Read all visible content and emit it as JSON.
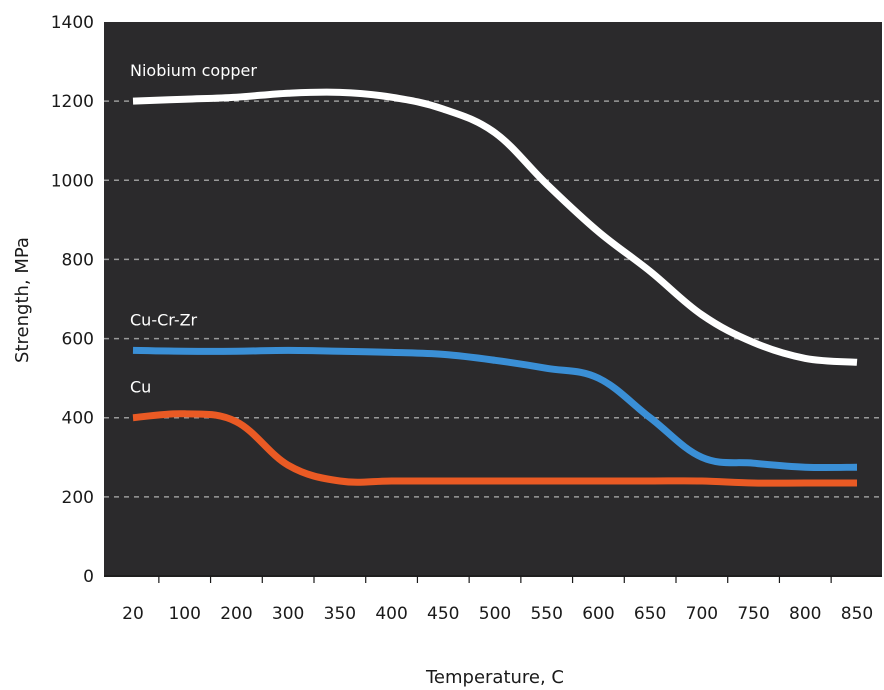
{
  "chart_data": {
    "type": "line",
    "xlabel": "Temperature, C",
    "ylabel": "Strength, MPa",
    "categories": [
      "20",
      "100",
      "200",
      "300",
      "350",
      "400",
      "450",
      "500",
      "550",
      "600",
      "650",
      "700",
      "750",
      "800",
      "850"
    ],
    "yticks": [
      "0",
      "200",
      "400",
      "600",
      "800",
      "1000",
      "1200",
      "1400"
    ],
    "ylim": [
      0,
      1400
    ],
    "grid": "horizontal dashed",
    "background_color": "#2b2a2c",
    "series": [
      {
        "name": "Niobium copper",
        "color": "#ffffff",
        "values": [
          1200,
          1205,
          1210,
          1220,
          1222,
          1210,
          1180,
          1120,
          990,
          870,
          770,
          660,
          590,
          550,
          540
        ]
      },
      {
        "name": "Cu-Cr-Zr",
        "color": "#3a8fd6",
        "values": [
          570,
          568,
          568,
          570,
          568,
          565,
          560,
          545,
          525,
          500,
          400,
          300,
          285,
          275,
          275
        ]
      },
      {
        "name": "Cu",
        "color": "#ea5a24",
        "values": [
          400,
          410,
          390,
          280,
          240,
          240,
          240,
          240,
          240,
          240,
          240,
          240,
          235,
          235,
          235
        ]
      }
    ]
  }
}
